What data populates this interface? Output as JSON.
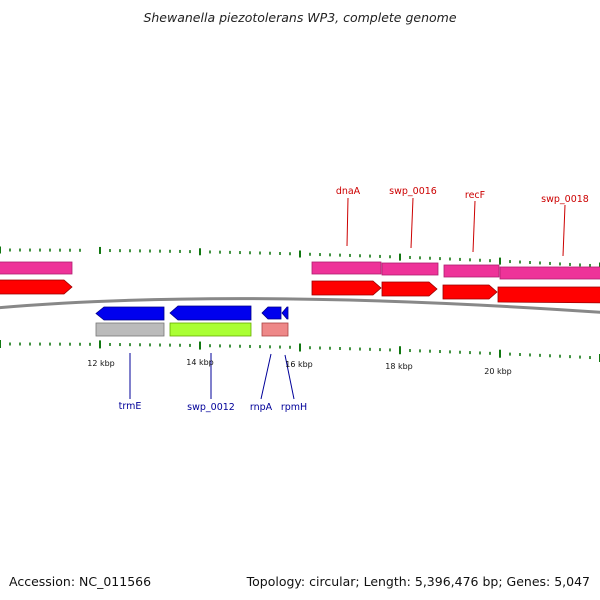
{
  "title": "Shewanella piezotolerans WP3, complete genome",
  "accession": "Accession: NC_011566",
  "summary": "Topology: circular; Length: 5,396,476 bp; Genes: 5,047",
  "colors": {
    "cds_top": "#ff0000",
    "gene_top": "#ee3399",
    "cds_bottom": "#0000ee",
    "tick": "#117711",
    "backbone": "#888888",
    "label_top": "#cc0000",
    "label_bottom": "#000099"
  },
  "scale_labels": [
    "12 kbp",
    "14 kbp",
    "16 kbp",
    "18 kbp",
    "20 kbp"
  ],
  "top_genes": [
    "dnaA",
    "swp_0016",
    "recF",
    "swp_0018"
  ],
  "bottom_genes": [
    "trmE",
    "swp_0012",
    "rnpA",
    "rpmH"
  ],
  "feature_colors": {
    "gray": "#bbbbbb",
    "green": "#aaff33",
    "salmon": "#ee8888"
  }
}
